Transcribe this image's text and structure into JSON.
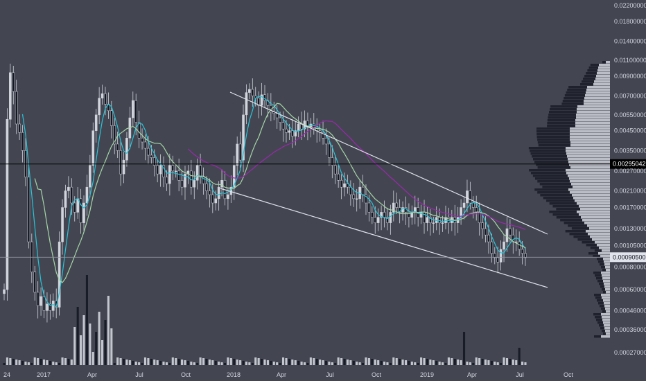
{
  "chart_data": {
    "type": "candlestick",
    "title": "",
    "y_scale": "log",
    "ylim": [
      0.00024,
      0.0236
    ],
    "y_ticks": [
      "0.02200000",
      "0.01800000",
      "0.01400000",
      "0.01100000",
      "0.00900000",
      "0.00700000",
      "0.00550000",
      "0.00450000",
      "0.00350000",
      "0.00270000",
      "0.00210000",
      "0.00170000",
      "0.00130000",
      "0.00105000",
      "0.00080000",
      "0.00060000",
      "0.00046000",
      "0.00036000",
      "0.00027000"
    ],
    "x_ticks": [
      "24",
      "2017",
      "Apr",
      "Jul",
      "Oct",
      "2018",
      "Apr",
      "Jul",
      "Oct",
      "2019",
      "Apr",
      "Jul",
      "Oct"
    ],
    "horizontal_line": {
      "value": 0.00295042,
      "label": "0.00295042"
    },
    "last_price": {
      "value": 0.000905,
      "label": "0.00090500"
    },
    "candles_close": [
      0.0006,
      0.0052,
      0.0094,
      0.0074,
      0.0049,
      0.0044,
      0.0035,
      0.0025,
      0.0011,
      0.00075,
      0.00058,
      0.00049,
      0.00055,
      0.00046,
      0.0005,
      0.00046,
      0.00052,
      0.00048,
      0.0011,
      0.0017,
      0.0021,
      0.0022,
      0.0018,
      0.0016,
      0.0019,
      0.0014,
      0.0018,
      0.0022,
      0.0029,
      0.0045,
      0.0055,
      0.0068,
      0.0072,
      0.0063,
      0.0058,
      0.0048,
      0.0038,
      0.0035,
      0.0026,
      0.0031,
      0.0041,
      0.0053,
      0.0066,
      0.005,
      0.0041,
      0.0039,
      0.0036,
      0.0033,
      0.0032,
      0.0029,
      0.0026,
      0.0029,
      0.0025,
      0.0023,
      0.0029,
      0.0027,
      0.0027,
      0.0024,
      0.0022,
      0.0026,
      0.0027,
      0.0022,
      0.0024,
      0.0029,
      0.0025,
      0.0023,
      0.0021,
      0.002,
      0.0018,
      0.0019,
      0.0022,
      0.0024,
      0.0019,
      0.002,
      0.0022,
      0.0029,
      0.0038,
      0.0031,
      0.0055,
      0.0073,
      0.0076,
      0.007,
      0.0068,
      0.0062,
      0.0071,
      0.0066,
      0.0062,
      0.0057,
      0.0056,
      0.0053,
      0.005,
      0.0046,
      0.0044,
      0.0045,
      0.0042,
      0.0045,
      0.0049,
      0.0046,
      0.0051,
      0.0047,
      0.0049,
      0.0047,
      0.0045,
      0.0044,
      0.0041,
      0.0038,
      0.0032,
      0.0029,
      0.0026,
      0.0024,
      0.0022,
      0.0023,
      0.0022,
      0.002,
      0.0019,
      0.0019,
      0.0022,
      0.002,
      0.0018,
      0.0016,
      0.0015,
      0.0014,
      0.0015,
      0.0016,
      0.0015,
      0.0014,
      0.0016,
      0.0018,
      0.0017,
      0.0016,
      0.0017,
      0.0016,
      0.0015,
      0.0016,
      0.0017,
      0.0015,
      0.0016,
      0.0014,
      0.0015,
      0.0014,
      0.0014,
      0.0015,
      0.0014,
      0.0014,
      0.0015,
      0.0014,
      0.0015,
      0.0014,
      0.0015,
      0.0017,
      0.0018,
      0.0021,
      0.0018,
      0.0017,
      0.0016,
      0.0014,
      0.0013,
      0.0012,
      0.0011,
      0.00095,
      0.0009,
      0.00085,
      0.001,
      0.0011,
      0.0013,
      0.0012,
      0.0011,
      0.0011,
      0.001,
      0.00095,
      0.0009
    ]
  }
}
